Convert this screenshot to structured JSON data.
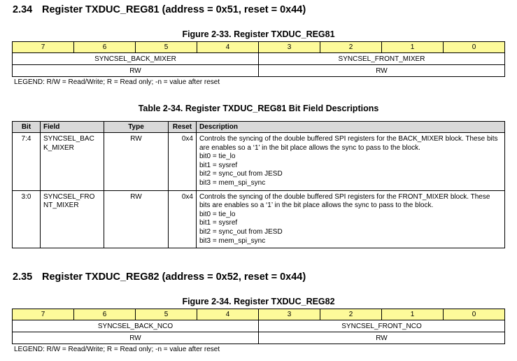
{
  "sections": [
    {
      "number": "2.34",
      "title": "Register TXDUC_REG81 (address = 0x51, reset = 0x44)",
      "figure_caption": "Figure 2-33. Register TXDUC_REG81",
      "bits": [
        "7",
        "6",
        "5",
        "4",
        "3",
        "2",
        "1",
        "0"
      ],
      "fields": [
        "SYNCSEL_BACK_MIXER",
        "SYNCSEL_FRONT_MIXER"
      ],
      "access": [
        "RW",
        "RW"
      ],
      "legend": "LEGEND: R/W = Read/Write; R = Read only; -n = value after reset"
    },
    {
      "number": "2.35",
      "title": "Register TXDUC_REG82 (address = 0x52, reset = 0x44)",
      "figure_caption": "Figure 2-34. Register TXDUC_REG82",
      "bits": [
        "7",
        "6",
        "5",
        "4",
        "3",
        "2",
        "1",
        "0"
      ],
      "fields": [
        "SYNCSEL_BACK_NCO",
        "SYNCSEL_FRONT_NCO"
      ],
      "access": [
        "RW",
        "RW"
      ],
      "legend": "LEGEND: R/W = Read/Write; R = Read only; -n = value after reset"
    }
  ],
  "table": {
    "caption": "Table 2-34. Register TXDUC_REG81 Bit Field Descriptions",
    "headers": [
      "Bit",
      "Field",
      "Type",
      "Reset",
      "Description"
    ],
    "rows": [
      {
        "bit": "7:4",
        "field": [
          "SYNCSEL_BAC",
          "K_MIXER"
        ],
        "type": "RW",
        "reset": "0x4",
        "desc": [
          "Controls the syncing of the double buffered SPI registers for the BACK_MIXER block. These bits are enables so a ‘1’ in the bit place allows the sync to pass to the block.",
          "bit0 = tie_lo",
          "bit1 = sysref",
          "bit2 = sync_out from JESD",
          "bit3 = mem_spi_sync"
        ]
      },
      {
        "bit": "3:0",
        "field": [
          "SYNCSEL_FRO",
          "NT_MIXER"
        ],
        "type": "RW",
        "reset": "0x4",
        "desc": [
          "Controls the syncing of the double buffered SPI registers for the FRONT_MIXER block. These bits are enables so a ‘1’ in the bit place allows the sync to pass to the block.",
          "bit0 = tie_lo",
          "bit1 = sysref",
          "bit2 = sync_out from JESD",
          "bit3 = mem_spi_sync"
        ]
      }
    ]
  },
  "colors": {
    "bit_row": "#fdfa9a",
    "header_row": "#d9d9d9"
  }
}
